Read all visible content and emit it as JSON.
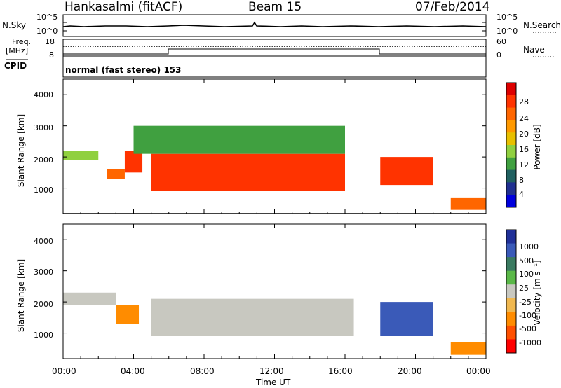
{
  "header": {
    "station": "Hankasalmi (fitACF)",
    "beam": "Beam 15",
    "date": "07/Feb/2014"
  },
  "noise_panel": {
    "left_label": "N.Sky",
    "right_label": "N.Search",
    "left_ticks": [
      "10^5",
      "10^0"
    ],
    "right_ticks": [
      "10^5",
      "10^0"
    ]
  },
  "freq_panel": {
    "left_label_1": "Freq.",
    "left_label_2": "[MHz]",
    "right_label": "Nave",
    "left_ticks": [
      "18",
      "8"
    ],
    "right_ticks": [
      "60",
      "0"
    ]
  },
  "cpid_panel": {
    "label": "CPID",
    "text": "normal (fast stereo) 153"
  },
  "power_panel": {
    "ylabel": "Slant Range [km]",
    "yticks": [
      "4000",
      "3000",
      "2000",
      "1000"
    ],
    "colorbar_label": "Power [dB]",
    "colorbar_ticks": [
      "28",
      "24",
      "20",
      "16",
      "12",
      "8",
      "4"
    ],
    "colorbar_colors": [
      "#dd0000",
      "#ff3300",
      "#ff6600",
      "#ff9900",
      "#e8c000",
      "#90d040",
      "#40a040",
      "#206060",
      "#203090",
      "#0000dd"
    ]
  },
  "velocity_panel": {
    "ylabel": "Slant Range [km]",
    "yticks": [
      "4000",
      "3000",
      "2000",
      "1000"
    ],
    "colorbar_label": "Velocity [m s⁻¹]",
    "colorbar_ticks": [
      "1000",
      "500",
      "100",
      "25",
      "-25",
      "-100",
      "-500",
      "-1000"
    ],
    "colorbar_colors": [
      "#203098",
      "#3a5ab8",
      "#3a7a60",
      "#5ab848",
      "#c8c8c0",
      "#f0b850",
      "#ff8c00",
      "#ff5000",
      "#ff0000"
    ]
  },
  "xaxis": {
    "label": "Time UT",
    "ticks": [
      "00:00",
      "04:00",
      "08:00",
      "12:00",
      "16:00",
      "20:00",
      "00:00"
    ]
  },
  "chart_data": {
    "type": "heatmap",
    "x_range_hours": [
      0,
      24
    ],
    "y_range_km": [
      180,
      4500
    ],
    "panels": [
      {
        "name": "power",
        "unit": "dB",
        "color_range": [
          0,
          30
        ],
        "regions": [
          {
            "t": [
              0,
              2
            ],
            "range": [
              1900,
              2200
            ],
            "value": 14
          },
          {
            "t": [
              2.5,
              3.5
            ],
            "range": [
              1300,
              1600
            ],
            "value": 24
          },
          {
            "t": [
              3.5,
              4.5
            ],
            "range": [
              1500,
              2200
            ],
            "value": 28
          },
          {
            "t": [
              5,
              16
            ],
            "range": [
              900,
              2100
            ],
            "value": 27
          },
          {
            "t": [
              4,
              16
            ],
            "range": [
              2100,
              3000
            ],
            "value": 10
          },
          {
            "t": [
              18,
              21
            ],
            "range": [
              1100,
              2000
            ],
            "value": 26
          },
          {
            "t": [
              22,
              24
            ],
            "range": [
              300,
              700
            ],
            "value": 22
          }
        ]
      },
      {
        "name": "velocity",
        "unit": "m s-1",
        "color_range": [
          -1000,
          1000
        ],
        "regions": [
          {
            "t": [
              0,
              3
            ],
            "range": [
              1900,
              2300
            ],
            "value": 0
          },
          {
            "t": [
              3,
              4.3
            ],
            "range": [
              1300,
              1900
            ],
            "value": -300
          },
          {
            "t": [
              5,
              16.5
            ],
            "range": [
              900,
              2100
            ],
            "value": 0
          },
          {
            "t": [
              18,
              21
            ],
            "range": [
              900,
              2000
            ],
            "value": 120
          },
          {
            "t": [
              22,
              24
            ],
            "range": [
              300,
              700
            ],
            "value": -300
          }
        ]
      }
    ]
  }
}
